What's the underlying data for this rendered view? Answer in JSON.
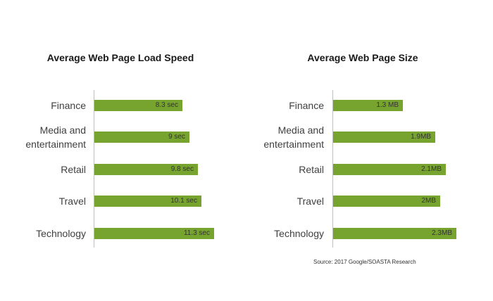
{
  "chart_data": [
    {
      "type": "bar",
      "orientation": "horizontal",
      "title": "Average Web Page Load Speed",
      "categories": [
        "Finance",
        "Media and\nentertainment",
        "Retail",
        "Travel",
        "Technology"
      ],
      "values": [
        8.3,
        9,
        9.8,
        10.1,
        11.3
      ],
      "data_labels": [
        "8.3 sec",
        "9 sec",
        "9.8 sec",
        "10.1 sec",
        "11.3 sec"
      ],
      "xlim": [
        0,
        11.3
      ],
      "grid": false,
      "bar_color": "#77a32f"
    },
    {
      "type": "bar",
      "orientation": "horizontal",
      "title": "Average Web Page Size",
      "categories": [
        "Finance",
        "Media and\nentertainment",
        "Retail",
        "Travel",
        "Technology"
      ],
      "values": [
        1.3,
        1.9,
        2.1,
        2,
        2.3
      ],
      "data_labels": [
        "1.3 MB",
        "1.9MB",
        "2.1MB",
        "2MB",
        "2.3MB"
      ],
      "xlim": [
        0,
        2.3
      ],
      "grid": false,
      "bar_color": "#77a32f"
    }
  ],
  "source_note": "Source: 2017 Google/SOASTA Research"
}
